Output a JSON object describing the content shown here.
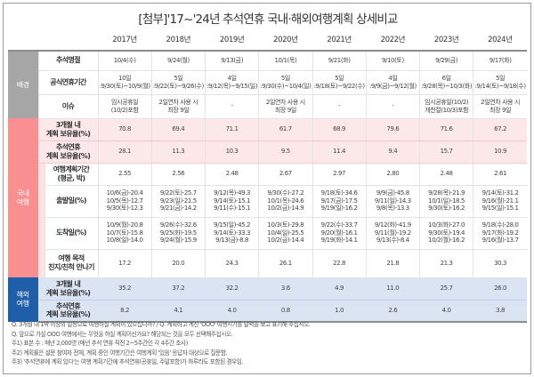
{
  "title": "[첨부]'17~'24년 추석연휴 국내·해외여행계획 상세비교",
  "years": [
    "2017년",
    "2018년",
    "2019년",
    "2020년",
    "2021년",
    "2022년",
    "2023년",
    "2024년"
  ],
  "categories": {
    "background": "배경",
    "domestic": "국내\n여행",
    "overseas": "해외\n여행"
  },
  "colors": {
    "background_cat": "#a6a6a6",
    "domestic_cat": "#f98f90",
    "overseas_cat": "#1f5ea8",
    "pink_row": "#fde8e9",
    "blue_row": "#dbe4f3"
  },
  "rows": {
    "chuseok_day": {
      "label": "추석명절",
      "values": [
        "10/4(수)",
        "9/24(월)",
        "9/13(금)",
        "10/1(목)",
        "9/21(화)",
        "9/10(토)",
        "9/29(금)",
        "9/17(화)"
      ]
    },
    "official_holiday": {
      "label": "공식연휴기간",
      "values": [
        [
          "10일",
          ":9/30(토)~10/9(월)"
        ],
        [
          "5일",
          ":9/22(토)~9/26(수)"
        ],
        [
          "4일",
          ":9/12(목)~9/15(일)"
        ],
        [
          "5일",
          ":9/30(수)~10/4(일)"
        ],
        [
          "5일",
          ":9/18(토)~9/22(수)"
        ],
        [
          "4일",
          ":9/9(금)~9/12(월)"
        ],
        [
          "6일",
          ":9/28(목)~10/3(화)"
        ],
        [
          "5일",
          ":9/14(토)~9/18(수)"
        ]
      ]
    },
    "issue": {
      "label": "이슈",
      "values": [
        [
          "임시공휴일",
          "(10/2)포함"
        ],
        [
          "2일연차 사용 시",
          "최장 9일"
        ],
        [
          "-"
        ],
        [
          "2일연차 사용 시",
          "최장 9일"
        ],
        [
          "-"
        ],
        [
          "-"
        ],
        [
          "임시공휴일(10/2)",
          "개천절(10/3)포함"
        ],
        [
          "2일연차 사용 시",
          "최장 9일"
        ]
      ]
    },
    "dom_3month": {
      "label": [
        "3개월 내",
        "계획 보유율(%)"
      ],
      "values": [
        "70.8",
        "69.4",
        "71.1",
        "61.7",
        "68.9",
        "79.6",
        "71.6",
        "67.2"
      ]
    },
    "dom_chuseok": {
      "label": [
        "추석연휴",
        "계획 보유율(%)"
      ],
      "values": [
        "28.1",
        "11.3",
        "10.3",
        "9.5",
        "11.4",
        "9.4",
        "15.7",
        "10.9"
      ]
    },
    "dom_period": {
      "label": [
        "여행계획기간",
        "(평균, 박)"
      ],
      "values": [
        "2.55",
        "2.56",
        "2.48",
        "2.67",
        "2.97",
        "2.80",
        "2.48",
        "2.61"
      ]
    },
    "dom_departure": {
      "label": "출발일(%)",
      "values": [
        [
          "10/6(금)-20.4",
          "10/5(목)-12.7",
          "9/30(토)-12.3"
        ],
        [
          "9/22(토)-25.7",
          "9/23(일)-21.5",
          "9/21(금)-14.2"
        ],
        [
          "9/12(목)-49.3",
          "9/14(토)-15.1",
          "9/11(수)-15.1"
        ],
        [
          "9/30(수)-27.2",
          "10/1(목)-24.6",
          "10/2(금)-14.9"
        ],
        [
          "9/18(토)-34.6",
          "9/17(금)-17.5",
          "9/19(일)-16.2"
        ],
        [
          "9/9(금)-45.8",
          "9/11(일)-14.3",
          "9/8(목)-13.3"
        ],
        [
          "9/28(목)-21.9",
          "10/1(일)-18.5",
          "9/30(토)-16.2"
        ],
        [
          "9/14(토)-31.2",
          "9/16(월)-21.1",
          "9/15(일)-15.1"
        ]
      ]
    },
    "dom_arrival": {
      "label": "도착일(%)",
      "values": [
        [
          "10/9(월)-20.8",
          "10/7(토)-15.8",
          "10/8(일)-14.0"
        ],
        [
          "9/26(수)-32.6",
          "9/25(화)-19.5",
          "9/24(월)-15.9"
        ],
        [
          "9/15(일)-45.2",
          "9/14(토)-33.3",
          "9/13(금)-8.8"
        ],
        [
          "10/3(토)-29.8",
          "10/4(일)-25.5",
          "10/2(금)-14.4"
        ],
        [
          "9/22(수)-33.7",
          "9/20(월)-16.1",
          "9/19(화)-14.1"
        ],
        [
          "9/12(화)-41.9",
          "9/11(월)-19.2",
          "9/13(수)-8.4"
        ],
        [
          "10/3(화)-27.0",
          "9/30(토)-19.4",
          "10/2(월)-16.2"
        ],
        [
          "9/18(수)-28.0",
          "9/17(화)-19.2",
          "9/16(월)-13.7"
        ]
      ]
    },
    "dom_purpose": {
      "label": [
        "여행 목적",
        "친지/친척 만나기"
      ],
      "values": [
        "17.2",
        "20.0",
        "24.3",
        "26.1",
        "22.8",
        "21.8",
        "21.3",
        "30.3"
      ]
    },
    "ovs_3month": {
      "label": [
        "3개월 내",
        "계획 보유율(%)"
      ],
      "values": [
        "35.2",
        "37.2",
        "32.2",
        "3.6",
        "4.9",
        "11.0",
        "25.7",
        "26.0"
      ]
    },
    "ovs_chuseok": {
      "label": [
        "추석연휴",
        "계획 보유율(%)"
      ],
      "values": [
        "8.2",
        "4.1",
        "4.0",
        "0.8",
        "1.0",
        "2.6",
        "4.0",
        "3.8"
      ]
    }
  },
  "notes": [
    "Q. 3개월 내 1박 이상의 일정으로 여행하실 계획이 있으십니까? / Q. 계획하고 계신 'OOO' 여행시기를 달력을 보고 표기해 주십시오.",
    "Q. 앞으로 가실 OOO 여행에서는 무엇을 하실 계획이신가요? 해당되는 것을 모두 선택해주십시오.",
    "주1) 표본 수 : 매년 2,000명 (매년 추석 연휴 직전 2~5주간인 각 4주간 조사)",
    "주2) 계획률은 설문 참여자 전체, 계획 중인 여행기간은 여행계획 '있음' 응답자 대상으로 질문함.",
    "주3) '추석연휴에 계획 있다'는 여행 계획기간에 추석연휴(공휴일, 주말포함)가 하루라도 포함된 경우임."
  ]
}
